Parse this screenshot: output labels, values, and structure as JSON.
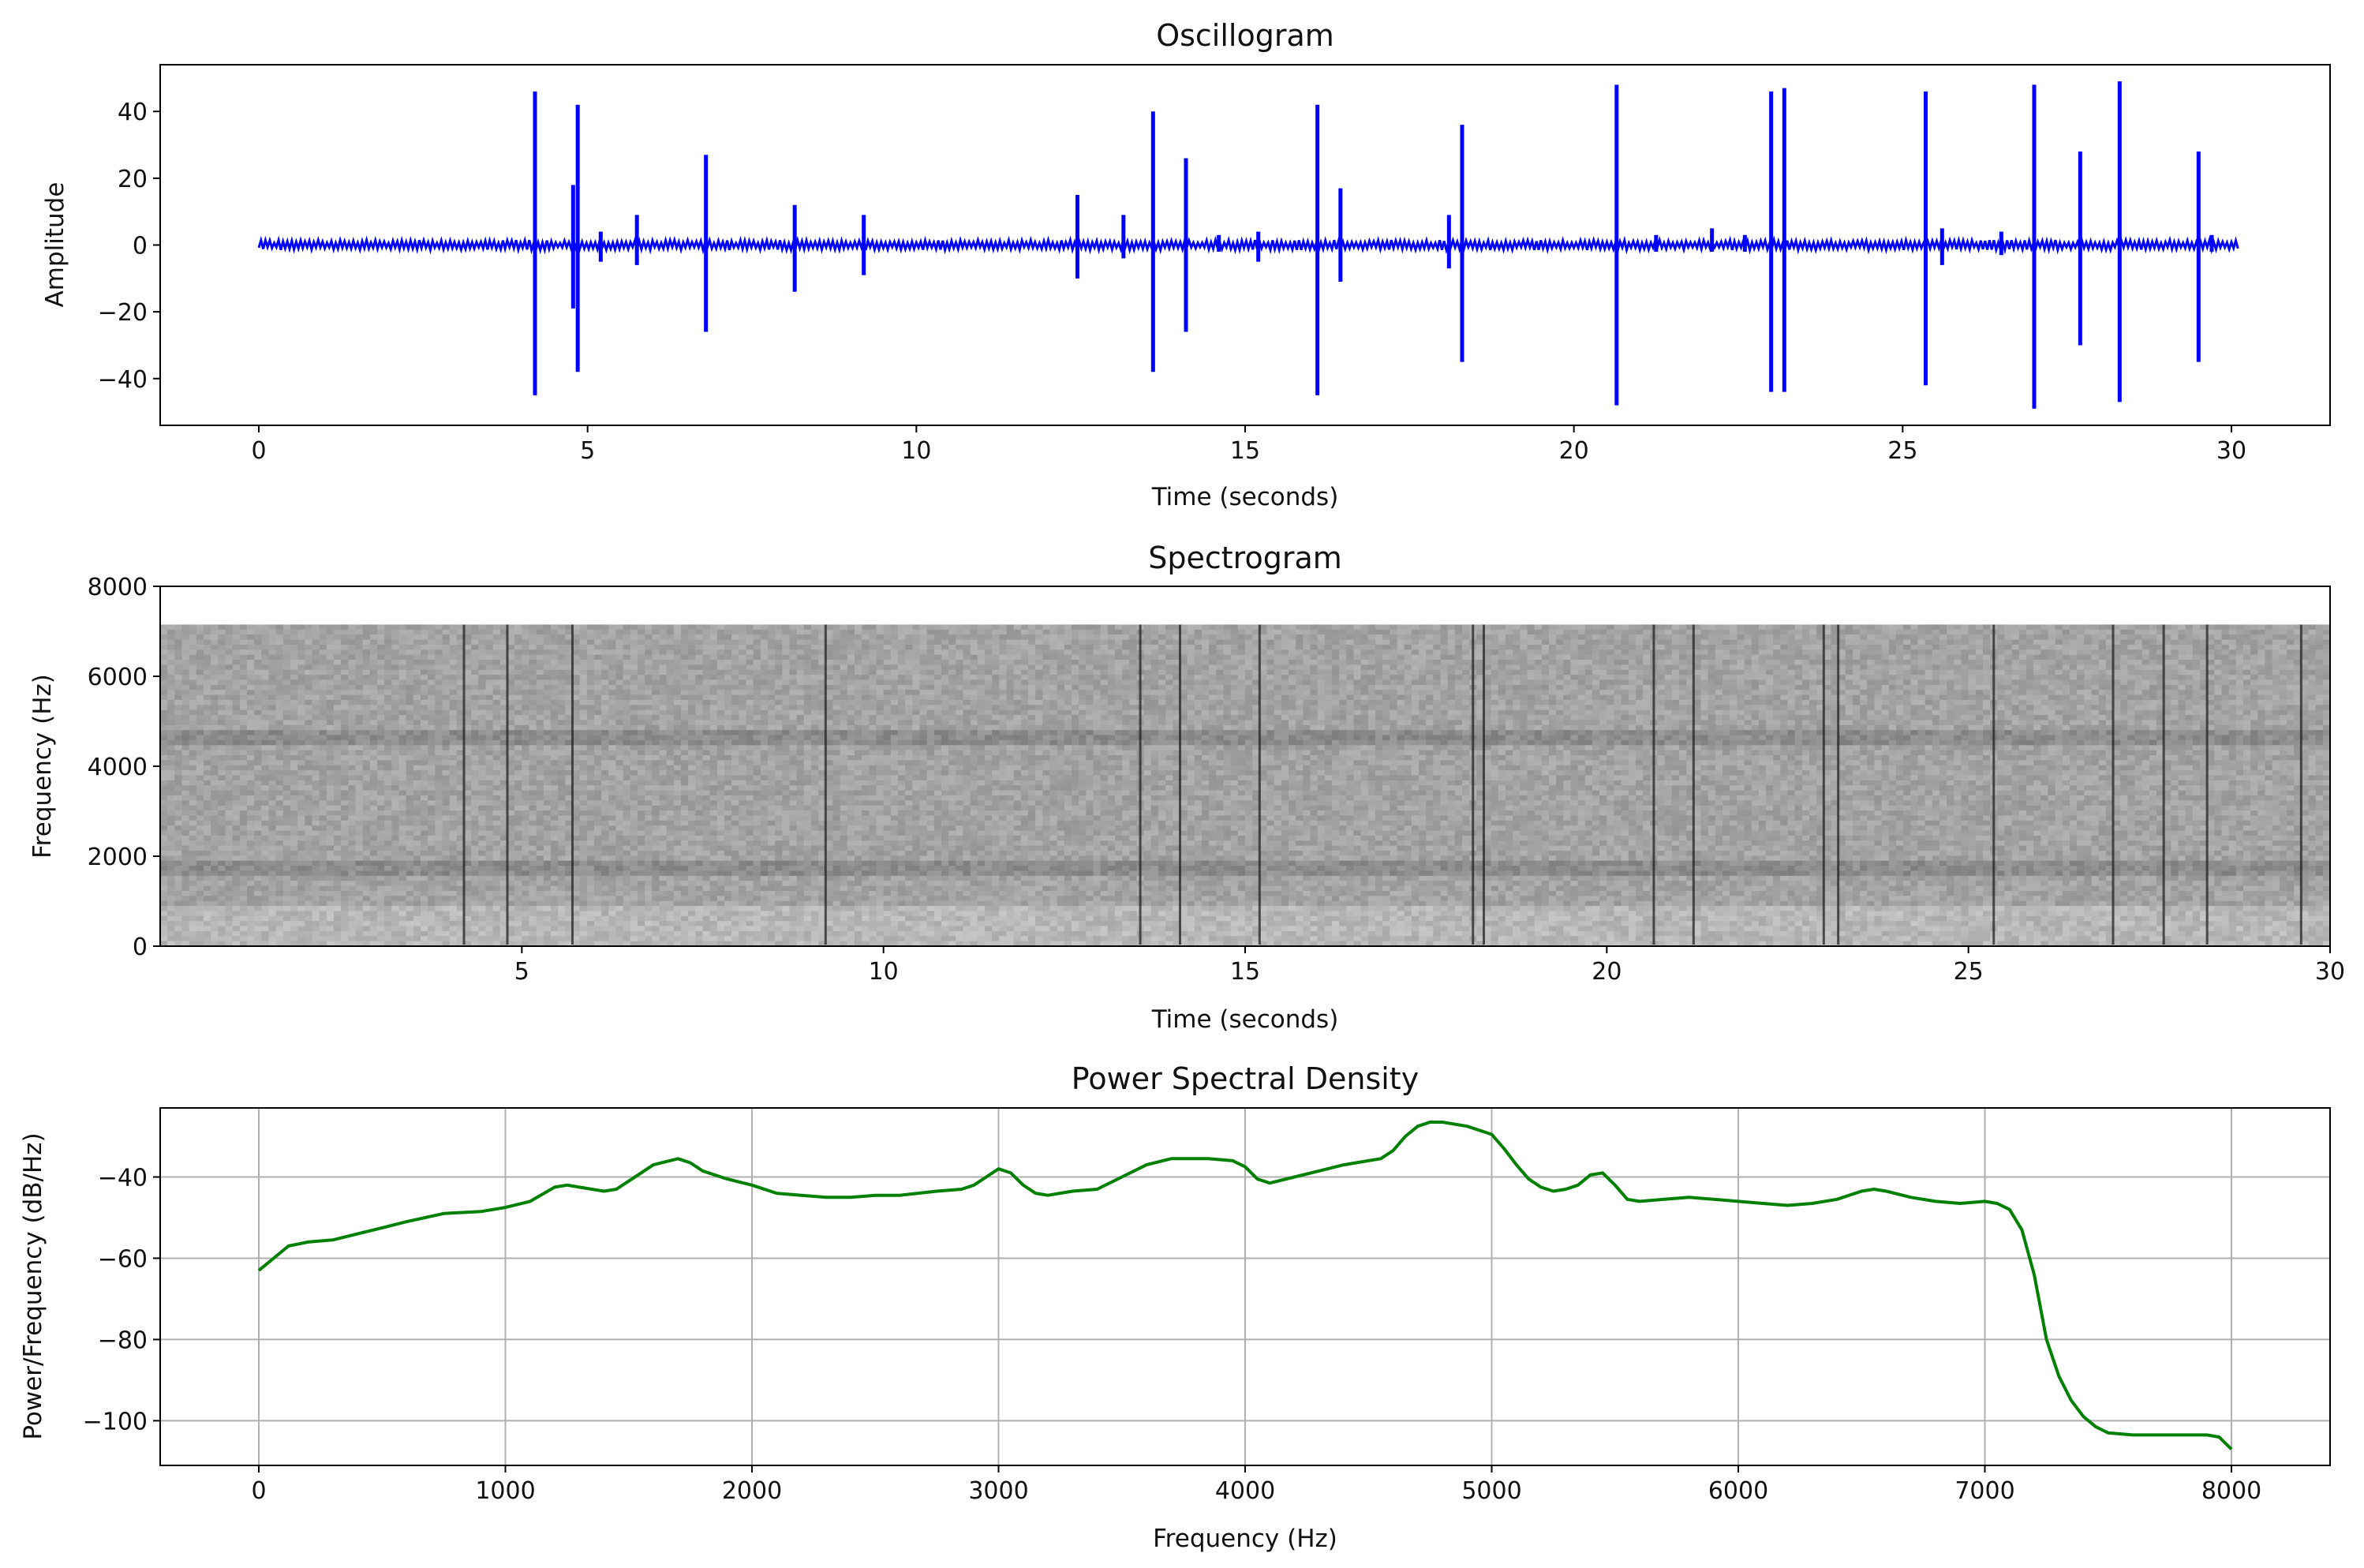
{
  "chart_data": [
    {
      "type": "line",
      "title": "Oscillogram",
      "xlabel": "Time (seconds)",
      "ylabel": "Amplitude",
      "xlim": [
        -1.5,
        31.5
      ],
      "ylim": [
        -54,
        54
      ],
      "xticks": [
        0,
        5,
        10,
        15,
        20,
        25,
        30
      ],
      "yticks": [
        -40,
        -20,
        0,
        20,
        40
      ],
      "color": "#0000ff",
      "grid": false,
      "baseline_range": [
        0,
        30.1
      ],
      "noise_amplitude": 1.5,
      "spikes": [
        {
          "t": 4.2,
          "up": 46,
          "down": -45
        },
        {
          "t": 4.78,
          "up": 18,
          "down": -19
        },
        {
          "t": 4.85,
          "up": 42,
          "down": -38
        },
        {
          "t": 5.2,
          "up": 4,
          "down": -5
        },
        {
          "t": 5.75,
          "up": 9,
          "down": -6
        },
        {
          "t": 6.8,
          "up": 27,
          "down": -26
        },
        {
          "t": 8.15,
          "up": 12,
          "down": -14
        },
        {
          "t": 9.2,
          "up": 9,
          "down": -9
        },
        {
          "t": 12.45,
          "up": 15,
          "down": -10
        },
        {
          "t": 13.15,
          "up": 9,
          "down": -4
        },
        {
          "t": 13.6,
          "up": 40,
          "down": -38
        },
        {
          "t": 14.1,
          "up": 26,
          "down": -26
        },
        {
          "t": 14.6,
          "up": 3,
          "down": -2
        },
        {
          "t": 15.2,
          "up": 4,
          "down": -5
        },
        {
          "t": 16.1,
          "up": 42,
          "down": -45
        },
        {
          "t": 16.45,
          "up": 17,
          "down": -11
        },
        {
          "t": 18.1,
          "up": 9,
          "down": -7
        },
        {
          "t": 18.3,
          "up": 36,
          "down": -35
        },
        {
          "t": 20.65,
          "up": 48,
          "down": -48
        },
        {
          "t": 21.25,
          "up": 3,
          "down": -2
        },
        {
          "t": 22.1,
          "up": 5,
          "down": -2
        },
        {
          "t": 22.6,
          "up": 3,
          "down": -2
        },
        {
          "t": 23.0,
          "up": 46,
          "down": -44
        },
        {
          "t": 23.2,
          "up": 47,
          "down": -44
        },
        {
          "t": 25.35,
          "up": 46,
          "down": -42
        },
        {
          "t": 25.6,
          "up": 5,
          "down": -6
        },
        {
          "t": 26.5,
          "up": 4,
          "down": -3
        },
        {
          "t": 27.0,
          "up": 48,
          "down": -49
        },
        {
          "t": 27.7,
          "up": 28,
          "down": -30
        },
        {
          "t": 28.3,
          "up": 49,
          "down": -47
        },
        {
          "t": 29.5,
          "up": 28,
          "down": -35
        },
        {
          "t": 29.7,
          "up": 3,
          "down": -2
        }
      ]
    },
    {
      "type": "heatmap",
      "title": "Spectrogram",
      "xlabel": "Time (seconds)",
      "ylabel": "Frequency (Hz)",
      "xlim": [
        0,
        30
      ],
      "ylim": [
        0,
        8000
      ],
      "xticks": [
        5,
        10,
        15,
        20,
        25,
        30
      ],
      "yticks": [
        0,
        2000,
        4000,
        6000,
        8000
      ],
      "colormap": "greys",
      "content_top_hz": 7150,
      "bands_hz": [
        4650,
        1800
      ],
      "event_times": [
        4.2,
        4.8,
        5.7,
        9.2,
        13.55,
        14.1,
        15.2,
        18.15,
        18.3,
        20.65,
        21.2,
        23.0,
        23.2,
        25.35,
        27.0,
        27.7,
        28.3,
        29.6
      ]
    },
    {
      "type": "line",
      "title": "Power Spectral Density",
      "xlabel": "Frequency (Hz)",
      "ylabel": "Power/Frequency (dB/Hz)",
      "xlim": [
        -400,
        8400
      ],
      "ylim": [
        -111,
        -23
      ],
      "xticks": [
        0,
        1000,
        2000,
        3000,
        4000,
        5000,
        6000,
        7000,
        8000
      ],
      "yticks": [
        -100,
        -80,
        -60,
        -40
      ],
      "color": "#008000",
      "grid": true,
      "x": [
        0,
        60,
        120,
        200,
        300,
        400,
        500,
        600,
        750,
        900,
        1000,
        1100,
        1200,
        1250,
        1300,
        1400,
        1450,
        1500,
        1550,
        1600,
        1700,
        1750,
        1800,
        1900,
        2000,
        2100,
        2200,
        2300,
        2400,
        2500,
        2600,
        2750,
        2850,
        2900,
        2950,
        3000,
        3050,
        3100,
        3150,
        3200,
        3300,
        3400,
        3500,
        3600,
        3700,
        3850,
        3950,
        4000,
        4050,
        4100,
        4200,
        4300,
        4400,
        4500,
        4550,
        4600,
        4650,
        4700,
        4750,
        4800,
        4900,
        5000,
        5050,
        5100,
        5150,
        5200,
        5250,
        5300,
        5350,
        5400,
        5450,
        5500,
        5550,
        5600,
        5700,
        5800,
        5900,
        6000,
        6100,
        6200,
        6300,
        6400,
        6500,
        6550,
        6600,
        6700,
        6800,
        6900,
        7000,
        7050,
        7100,
        7150,
        7200,
        7250,
        7300,
        7350,
        7400,
        7450,
        7500,
        7600,
        7700,
        7800,
        7900,
        7950,
        8000
      ],
      "y": [
        -63,
        -60,
        -57,
        -56,
        -55.5,
        -54,
        -52.5,
        -51,
        -49,
        -48.5,
        -47.5,
        -46,
        -42.5,
        -42,
        -42.5,
        -43.5,
        -43,
        -41,
        -39,
        -37,
        -35.5,
        -36.5,
        -38.5,
        -40.5,
        -42,
        -44,
        -44.5,
        -45,
        -45,
        -44.5,
        -44.5,
        -43.5,
        -43,
        -42,
        -40,
        -38,
        -39,
        -42,
        -44,
        -44.5,
        -43.5,
        -43,
        -40,
        -37,
        -35.5,
        -35.5,
        -36,
        -37.5,
        -40.5,
        -41.5,
        -40,
        -38.5,
        -37,
        -36,
        -35.5,
        -33.5,
        -30,
        -27.5,
        -26.5,
        -26.5,
        -27.5,
        -29.5,
        -33,
        -37,
        -40.5,
        -42.5,
        -43.5,
        -43,
        -42,
        -39.5,
        -39,
        -42,
        -45.5,
        -46,
        -45.5,
        -45,
        -45.5,
        -46,
        -46.5,
        -47,
        -46.5,
        -45.5,
        -43.5,
        -43,
        -43.5,
        -45,
        -46,
        -46.5,
        -46,
        -46.5,
        -48,
        -53,
        -64,
        -80,
        -89,
        -95,
        -99,
        -101.5,
        -103,
        -103.5,
        -103.5,
        -103.5,
        -103.5,
        -104,
        -107
      ]
    }
  ]
}
